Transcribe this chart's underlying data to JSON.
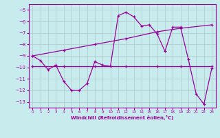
{
  "xlabel": "Windchill (Refroidissement éolien,°C)",
  "background_color": "#c8ecee",
  "grid_color": "#b0c8ca",
  "line_color": "#990099",
  "xlim": [
    -0.5,
    23.5
  ],
  "ylim": [
    -13.5,
    -4.5
  ],
  "yticks": [
    -13,
    -12,
    -11,
    -10,
    -9,
    -8,
    -7,
    -6,
    -5
  ],
  "xticks": [
    0,
    1,
    2,
    3,
    4,
    5,
    6,
    7,
    8,
    9,
    10,
    11,
    12,
    13,
    14,
    15,
    16,
    17,
    18,
    19,
    20,
    21,
    22,
    23
  ],
  "line1_x": [
    0,
    1,
    2,
    3,
    4,
    5,
    6,
    7,
    8,
    9,
    10,
    11,
    12,
    13,
    14,
    15,
    16,
    17,
    18,
    19,
    20,
    21,
    22,
    23
  ],
  "line1_y": [
    -9.0,
    -9.4,
    -10.2,
    -9.8,
    -11.2,
    -12.0,
    -12.0,
    -11.4,
    -9.5,
    -9.8,
    -9.9,
    -5.5,
    -5.2,
    -5.6,
    -6.4,
    -6.3,
    -7.1,
    -8.6,
    -6.5,
    -6.5,
    -9.3,
    -12.3,
    -13.2,
    -10.1
  ],
  "line2_x": [
    0,
    4,
    8,
    12,
    16,
    19,
    23
  ],
  "line2_y": [
    -9.0,
    -8.5,
    -8.0,
    -7.5,
    -6.9,
    -6.6,
    -6.3
  ],
  "line3_x": [
    0,
    4,
    8,
    12,
    16,
    19,
    23
  ],
  "line3_y": [
    -9.9,
    -9.9,
    -9.9,
    -9.9,
    -9.9,
    -9.9,
    -9.9
  ],
  "marker": "+",
  "markersize": 3,
  "linewidth": 0.9
}
